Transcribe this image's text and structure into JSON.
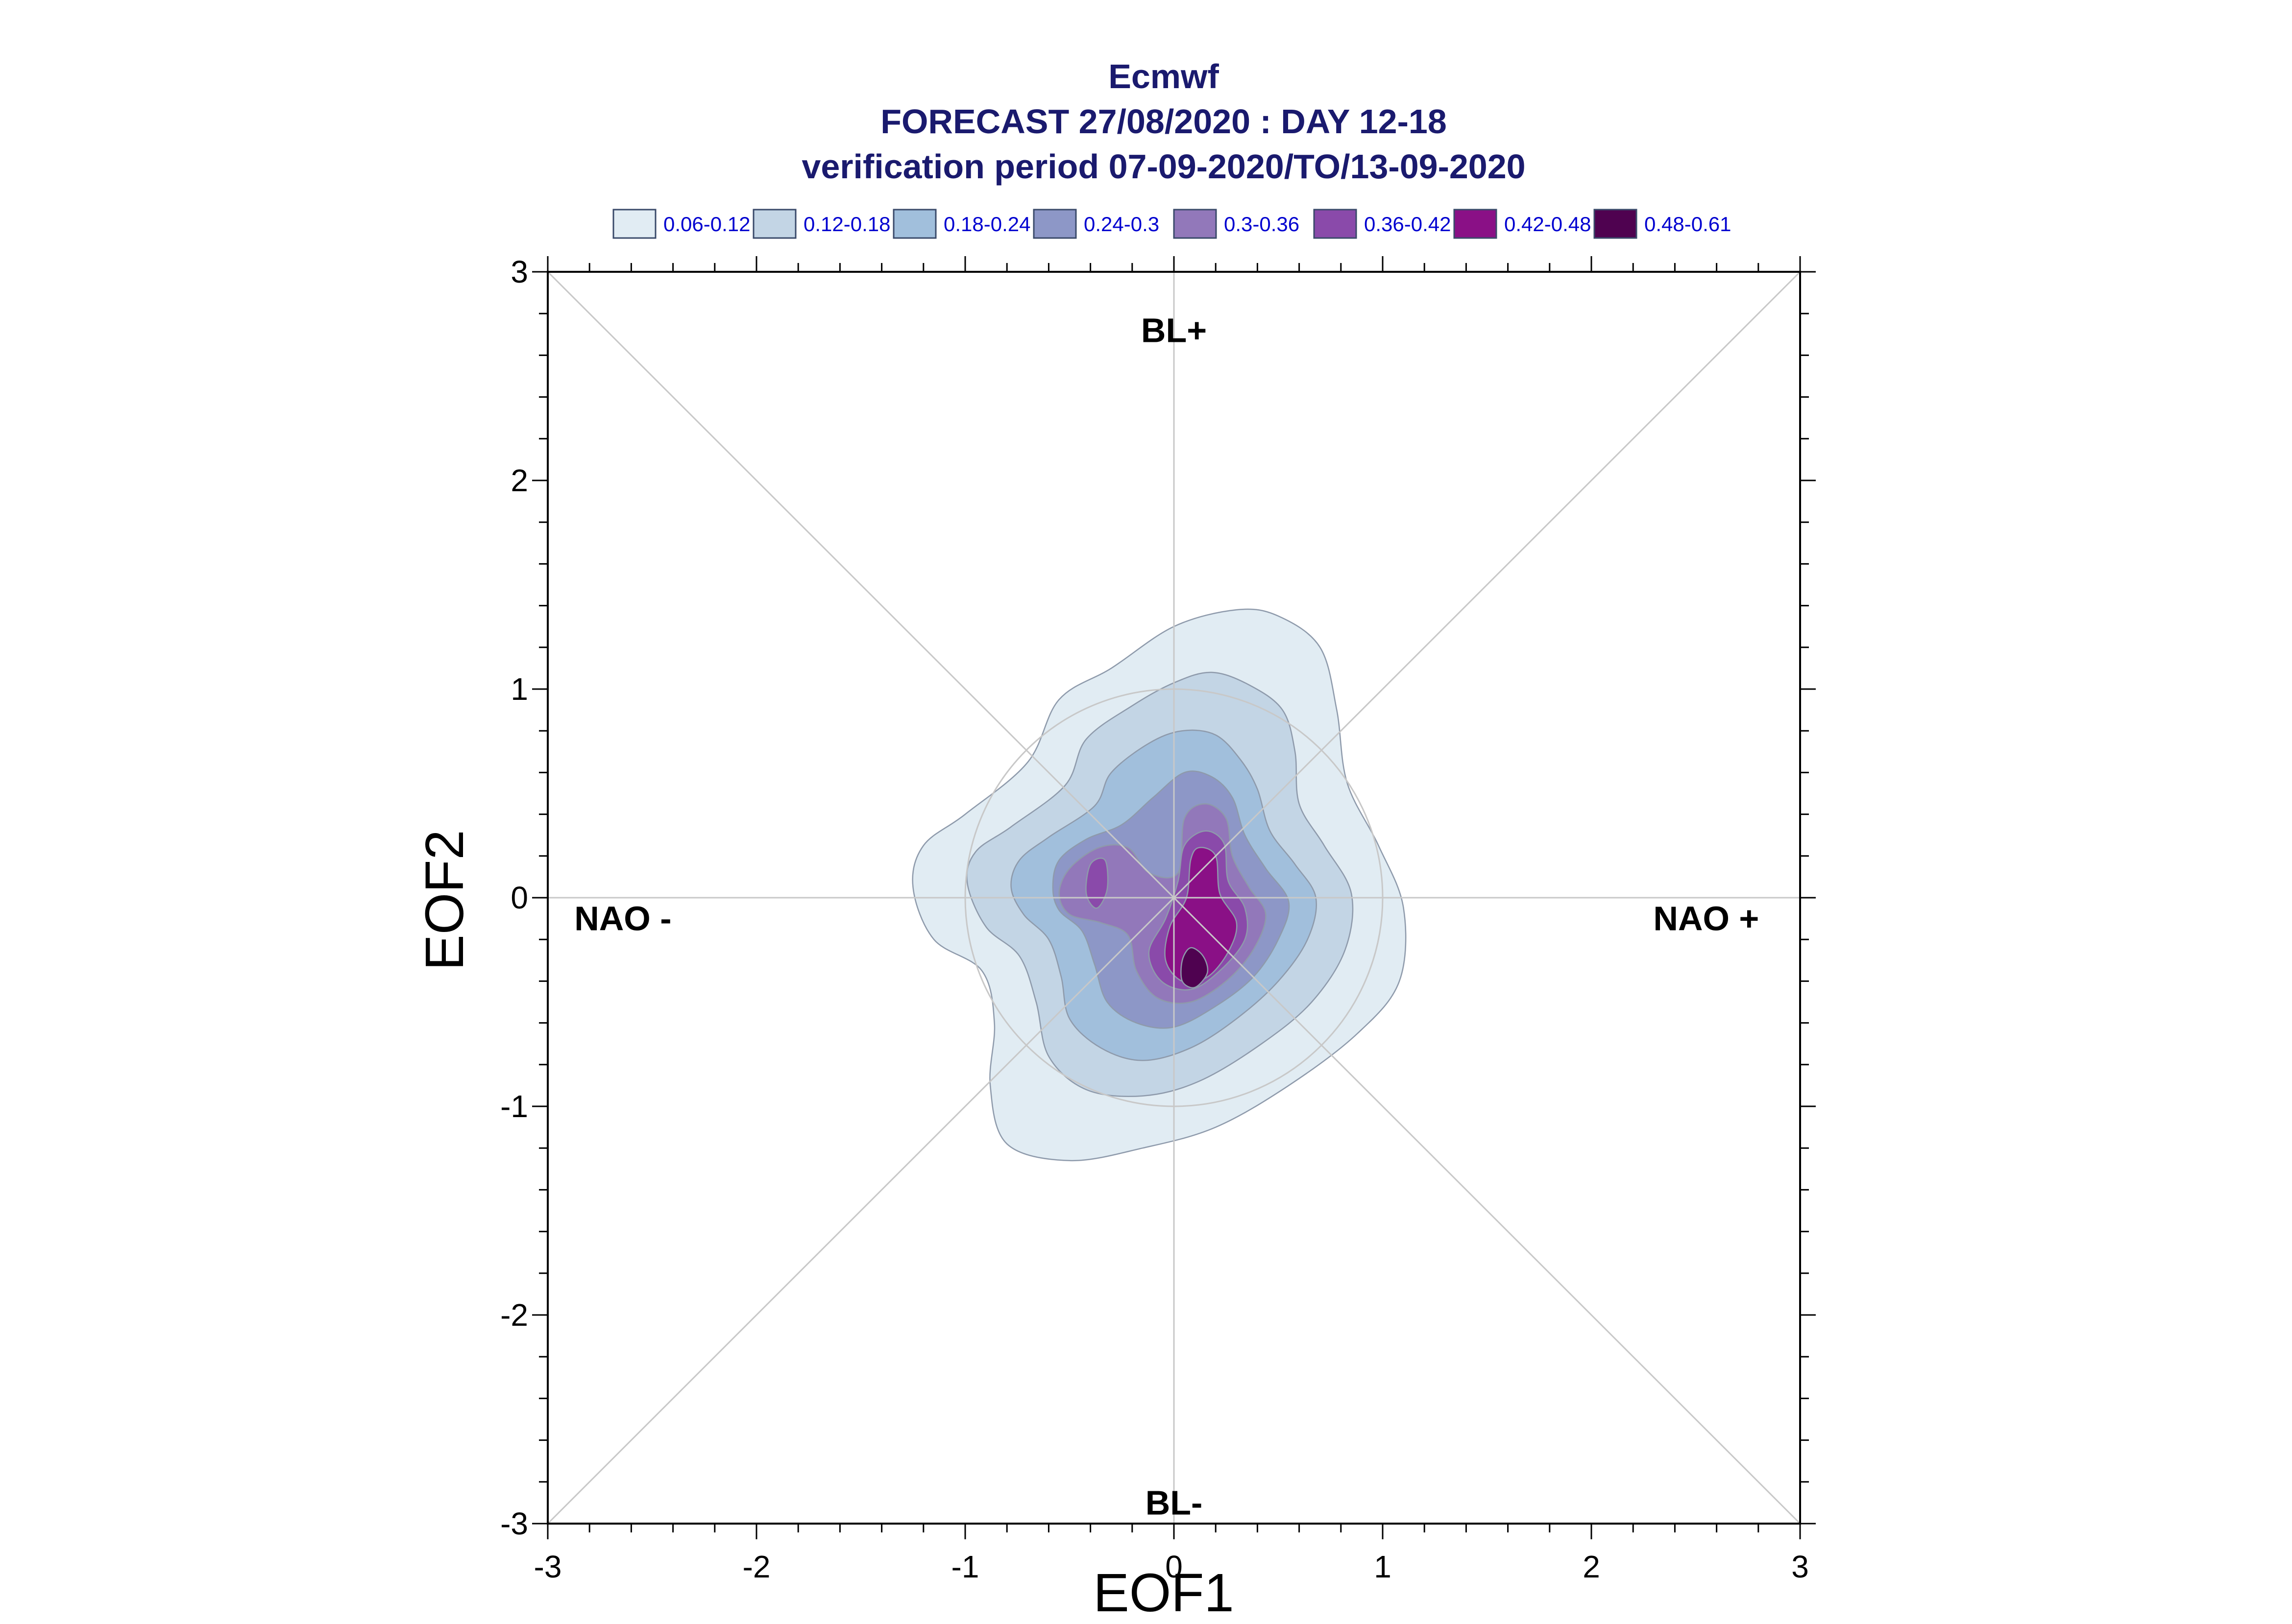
{
  "chart_data": {
    "type": "contour",
    "title": [
      "Ecmwf",
      "FORECAST 27/08/2020 : DAY 12-18",
      "verification period 07-09-2020/TO/13-09-2020"
    ],
    "xlabel": "EOF1",
    "ylabel": "EOF2",
    "xlim": [
      -3,
      3
    ],
    "ylim": [
      -3,
      3
    ],
    "xticks": [
      -3,
      -2,
      -1,
      0,
      1,
      2,
      3
    ],
    "yticks": [
      -3,
      -2,
      -1,
      0,
      1,
      2,
      3
    ],
    "grid": "center cross and diagonals",
    "reference_circle_radius": 1.0,
    "quadrant_labels": [
      {
        "text": "BL+",
        "x": 0.0,
        "y": 2.72
      },
      {
        "text": "BL-",
        "x": 0.0,
        "y": -2.9
      },
      {
        "text": "NAO -",
        "x": -2.64,
        "y": -0.1
      },
      {
        "text": "NAO +",
        "x": 2.55,
        "y": -0.1
      }
    ],
    "legend": [
      {
        "label": "0.06-0.12",
        "color": "#e1ecf3"
      },
      {
        "label": "0.12-0.18",
        "color": "#c3d5e5"
      },
      {
        "label": "0.18-0.24",
        "color": "#a1bfdc"
      },
      {
        "label": "0.24-0.3",
        "color": "#8d97c7"
      },
      {
        "label": "0.3-0.36",
        "color": "#9278ba"
      },
      {
        "label": "0.36-0.42",
        "color": "#8a4aaa"
      },
      {
        "label": "0.42-0.48",
        "color": "#8a1086"
      },
      {
        "label": "0.48-0.61",
        "color": "#4f0250"
      }
    ],
    "legend_placement": "top",
    "contours": [
      {
        "level": "0.06-0.12",
        "color": "#e1ecf3",
        "points": [
          [
            -1.25,
            0.05
          ],
          [
            -1.2,
            0.25
          ],
          [
            -1.0,
            0.4
          ],
          [
            -0.7,
            0.65
          ],
          [
            -0.55,
            0.95
          ],
          [
            -0.3,
            1.1
          ],
          [
            0.0,
            1.3
          ],
          [
            0.3,
            1.38
          ],
          [
            0.5,
            1.35
          ],
          [
            0.7,
            1.2
          ],
          [
            0.78,
            0.9
          ],
          [
            0.83,
            0.55
          ],
          [
            0.98,
            0.25
          ],
          [
            1.1,
            -0.05
          ],
          [
            1.08,
            -0.4
          ],
          [
            0.88,
            -0.65
          ],
          [
            0.55,
            -0.9
          ],
          [
            0.2,
            -1.1
          ],
          [
            -0.15,
            -1.2
          ],
          [
            -0.5,
            -1.26
          ],
          [
            -0.8,
            -1.18
          ],
          [
            -0.88,
            -0.9
          ],
          [
            -0.86,
            -0.6
          ],
          [
            -0.92,
            -0.35
          ],
          [
            -1.15,
            -0.2
          ]
        ]
      },
      {
        "level": "0.12-0.18",
        "color": "#c3d5e5",
        "points": [
          [
            -0.99,
            0.07
          ],
          [
            -0.95,
            0.22
          ],
          [
            -0.78,
            0.34
          ],
          [
            -0.52,
            0.54
          ],
          [
            -0.42,
            0.76
          ],
          [
            -0.2,
            0.92
          ],
          [
            0.0,
            1.03
          ],
          [
            0.18,
            1.08
          ],
          [
            0.36,
            1.02
          ],
          [
            0.52,
            0.9
          ],
          [
            0.58,
            0.7
          ],
          [
            0.6,
            0.45
          ],
          [
            0.72,
            0.25
          ],
          [
            0.85,
            0.02
          ],
          [
            0.82,
            -0.25
          ],
          [
            0.66,
            -0.5
          ],
          [
            0.42,
            -0.7
          ],
          [
            0.12,
            -0.88
          ],
          [
            -0.15,
            -0.95
          ],
          [
            -0.42,
            -0.92
          ],
          [
            -0.6,
            -0.76
          ],
          [
            -0.66,
            -0.5
          ],
          [
            -0.74,
            -0.28
          ],
          [
            -0.9,
            -0.14
          ]
        ]
      },
      {
        "level": "0.18-0.24",
        "color": "#a1bfdc",
        "points": [
          [
            -0.78,
            0.05
          ],
          [
            -0.74,
            0.18
          ],
          [
            -0.6,
            0.29
          ],
          [
            -0.38,
            0.44
          ],
          [
            -0.3,
            0.6
          ],
          [
            -0.12,
            0.74
          ],
          [
            0.04,
            0.8
          ],
          [
            0.2,
            0.78
          ],
          [
            0.32,
            0.66
          ],
          [
            0.4,
            0.52
          ],
          [
            0.46,
            0.32
          ],
          [
            0.58,
            0.16
          ],
          [
            0.68,
            0.0
          ],
          [
            0.64,
            -0.2
          ],
          [
            0.5,
            -0.4
          ],
          [
            0.3,
            -0.58
          ],
          [
            0.08,
            -0.72
          ],
          [
            -0.15,
            -0.78
          ],
          [
            -0.35,
            -0.72
          ],
          [
            -0.5,
            -0.58
          ],
          [
            -0.54,
            -0.38
          ],
          [
            -0.6,
            -0.2
          ],
          [
            -0.72,
            -0.08
          ]
        ]
      },
      {
        "level": "0.24-0.3",
        "color": "#8d97c7",
        "points": [
          [
            -0.58,
            0.05
          ],
          [
            -0.55,
            0.18
          ],
          [
            -0.42,
            0.28
          ],
          [
            -0.25,
            0.35
          ],
          [
            -0.1,
            0.48
          ],
          [
            0.05,
            0.6
          ],
          [
            0.18,
            0.58
          ],
          [
            0.28,
            0.48
          ],
          [
            0.34,
            0.3
          ],
          [
            0.44,
            0.14
          ],
          [
            0.55,
            -0.02
          ],
          [
            0.5,
            -0.2
          ],
          [
            0.38,
            -0.38
          ],
          [
            0.2,
            -0.52
          ],
          [
            0.0,
            -0.62
          ],
          [
            -0.18,
            -0.6
          ],
          [
            -0.32,
            -0.5
          ],
          [
            -0.38,
            -0.32
          ],
          [
            -0.44,
            -0.16
          ],
          [
            -0.55,
            -0.06
          ]
        ]
      },
      {
        "level": "0.3-0.36",
        "color": "#9278ba",
        "points": [
          [
            -0.55,
            0.02
          ],
          [
            -0.5,
            0.14
          ],
          [
            -0.36,
            0.24
          ],
          [
            -0.22,
            0.24
          ],
          [
            -0.12,
            0.12
          ],
          [
            0.02,
            0.12
          ],
          [
            0.05,
            0.38
          ],
          [
            0.15,
            0.45
          ],
          [
            0.25,
            0.38
          ],
          [
            0.28,
            0.2
          ],
          [
            0.36,
            0.05
          ],
          [
            0.44,
            -0.08
          ],
          [
            0.38,
            -0.25
          ],
          [
            0.25,
            -0.4
          ],
          [
            0.08,
            -0.5
          ],
          [
            -0.08,
            -0.48
          ],
          [
            -0.18,
            -0.35
          ],
          [
            -0.22,
            -0.18
          ],
          [
            -0.35,
            -0.12
          ],
          [
            -0.5,
            -0.08
          ]
        ]
      },
      {
        "level": "0.36-0.42",
        "color": "#8a4aaa",
        "points": [
          [
            -0.42,
            0.02
          ],
          [
            -0.4,
            0.16
          ],
          [
            -0.33,
            0.18
          ],
          [
            -0.32,
            0.04
          ],
          [
            -0.37,
            -0.05
          ]
        ]
      },
      {
        "level": "0.36-0.42",
        "color": "#8a4aaa",
        "points": [
          [
            0.05,
            0.25
          ],
          [
            0.15,
            0.32
          ],
          [
            0.24,
            0.26
          ],
          [
            0.26,
            0.08
          ],
          [
            0.34,
            -0.05
          ],
          [
            0.34,
            -0.2
          ],
          [
            0.22,
            -0.35
          ],
          [
            0.08,
            -0.44
          ],
          [
            -0.06,
            -0.4
          ],
          [
            -0.12,
            -0.26
          ],
          [
            -0.04,
            -0.1
          ],
          [
            0.02,
            0.08
          ]
        ]
      },
      {
        "level": "0.42-0.48",
        "color": "#8a1086",
        "points": [
          [
            0.12,
            0.24
          ],
          [
            0.2,
            0.2
          ],
          [
            0.22,
            0.02
          ],
          [
            0.3,
            -0.12
          ],
          [
            0.26,
            -0.26
          ],
          [
            0.16,
            -0.38
          ],
          [
            0.04,
            -0.4
          ],
          [
            -0.04,
            -0.3
          ],
          [
            -0.02,
            -0.14
          ],
          [
            0.06,
            0.0
          ],
          [
            0.08,
            0.18
          ]
        ]
      },
      {
        "level": "0.48-0.61",
        "color": "#4f0250",
        "points": [
          [
            0.08,
            -0.24
          ],
          [
            0.14,
            -0.28
          ],
          [
            0.16,
            -0.36
          ],
          [
            0.1,
            -0.43
          ],
          [
            0.04,
            -0.4
          ],
          [
            0.04,
            -0.3
          ]
        ]
      }
    ]
  }
}
